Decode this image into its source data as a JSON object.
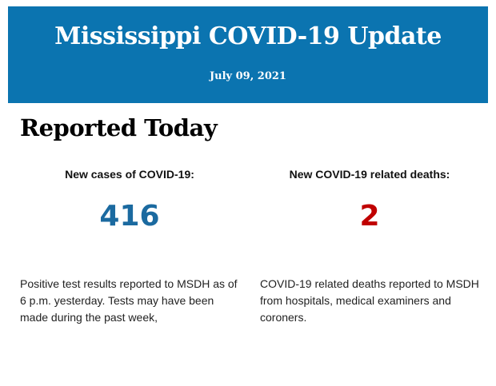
{
  "header": {
    "title": "Mississippi COVID-19 Update",
    "date": "July 09, 2021",
    "color": "#0b74b0"
  },
  "section_title": "Reported Today",
  "stats": [
    {
      "label": "New cases of COVID-19:",
      "value": "416",
      "color": "#1b6aa0",
      "description": "Positive test results reported to MSDH as of 6 p.m. yesterday. Tests may have been made during the past week,"
    },
    {
      "label": "New COVID-19 related deaths:",
      "value": "2",
      "color": "#c00000",
      "description": "COVID-19 related deaths reported to MSDH from hospitals, medical examiners and coroners."
    }
  ]
}
